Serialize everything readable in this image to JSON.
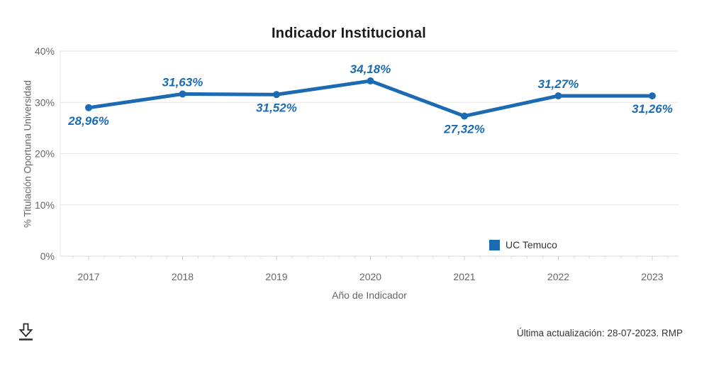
{
  "chart_data": {
    "type": "line",
    "title": "Indicador Institucional",
    "xlabel": "Año de Indicador",
    "ylabel": "% Titulación Oportuna Universidad",
    "categories": [
      "2017",
      "2018",
      "2019",
      "2020",
      "2021",
      "2022",
      "2023"
    ],
    "series": [
      {
        "name": "UC Temuco",
        "color": "#1c6bb2",
        "values": [
          28.96,
          31.63,
          31.52,
          34.18,
          27.32,
          31.27,
          31.26
        ],
        "value_labels": [
          "28,96%",
          "31,63%",
          "31,52%",
          "34,18%",
          "27,32%",
          "31,27%",
          "31,26%"
        ],
        "label_positions": [
          "below",
          "above",
          "below",
          "above",
          "below",
          "above",
          "below"
        ]
      }
    ],
    "ylim": [
      0,
      40
    ],
    "yticks": [
      0,
      10,
      20,
      30,
      40
    ],
    "ytick_labels": [
      "0%",
      "10%",
      "20%",
      "30%",
      "40%"
    ],
    "grid": true,
    "legend": {
      "label": "UC Temuco",
      "position": "inside-bottom-right",
      "marker_color": "#1c6bb2"
    }
  },
  "footer": {
    "updated_text": "Última actualización: 28-07-2023. RMP",
    "download_icon": "download-icon"
  },
  "colors": {
    "accent": "#1c6bb2",
    "axis_text": "#666666",
    "legend_text": "#333333",
    "title_text": "#1a1a1a",
    "footer_text": "#333333",
    "grid_line": "#e6e6e6",
    "axis_line": "#d9d9d9",
    "tick_minor": "#e0e0e0",
    "tick_major": "#cccccc"
  }
}
